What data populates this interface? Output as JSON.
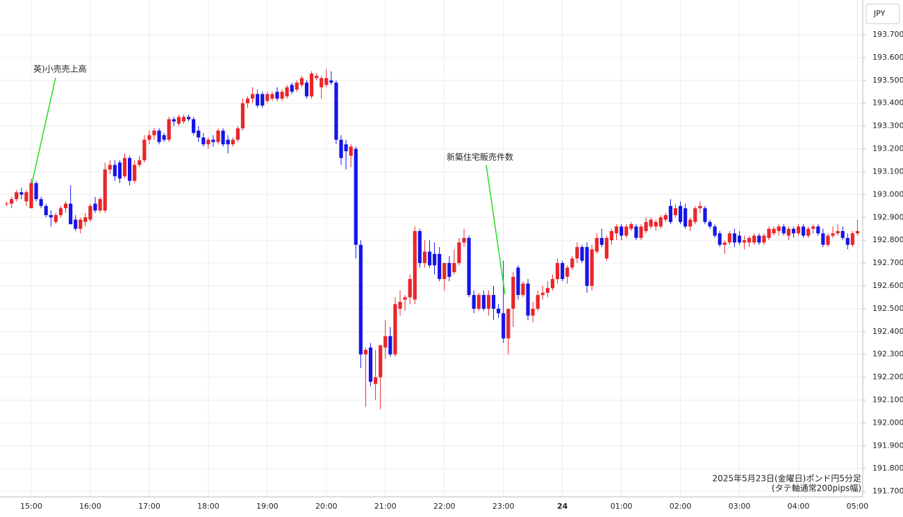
{
  "chart_data": {
    "type": "candlestick",
    "y_axis_label": "JPY",
    "footnote": [
      "2025年5月23日(金曜日)ポンド円5分足",
      "(タテ軸通常200pips幅)"
    ],
    "annotations": [
      "英)小売売上高",
      "新築住宅販売件数"
    ],
    "up_color": "#e8262a",
    "down_color": "#1515e8",
    "grid": true,
    "ylim": [
      191.676,
      193.852
    ],
    "yticks": [
      {
        "value": 191.7,
        "label": "191.700"
      },
      {
        "value": 191.8,
        "label": "191.800"
      },
      {
        "value": 191.9,
        "label": "191.900"
      },
      {
        "value": 192.0,
        "label": "192.000"
      },
      {
        "value": 192.1,
        "label": "192.100"
      },
      {
        "value": 192.2,
        "label": "192.200"
      },
      {
        "value": 192.3,
        "label": "192.300"
      },
      {
        "value": 192.4,
        "label": "192.400"
      },
      {
        "value": 192.5,
        "label": "192.500"
      },
      {
        "value": 192.6,
        "label": "192.600"
      },
      {
        "value": 192.7,
        "label": "192.700"
      },
      {
        "value": 192.8,
        "label": "192.800"
      },
      {
        "value": 192.9,
        "label": "192.900"
      },
      {
        "value": 193.0,
        "label": "193.000"
      },
      {
        "value": 193.1,
        "label": "193.100"
      },
      {
        "value": 193.2,
        "label": "193.200"
      },
      {
        "value": 193.3,
        "label": "193.300"
      },
      {
        "value": 193.4,
        "label": "193.400"
      },
      {
        "value": 193.5,
        "label": "193.500"
      },
      {
        "value": 193.6,
        "label": "193.600"
      },
      {
        "value": 193.7,
        "label": "193.700"
      }
    ],
    "categories": [
      null,
      null,
      null,
      null,
      null,
      "15:00",
      null,
      null,
      null,
      null,
      null,
      null,
      null,
      null,
      null,
      null,
      null,
      "16:00",
      null,
      null,
      null,
      null,
      null,
      null,
      null,
      null,
      null,
      null,
      null,
      "17:00",
      null,
      null,
      null,
      null,
      null,
      null,
      null,
      null,
      null,
      null,
      null,
      "18:00",
      null,
      null,
      null,
      null,
      null,
      null,
      null,
      null,
      null,
      null,
      null,
      "19:00",
      null,
      null,
      null,
      null,
      null,
      null,
      null,
      null,
      null,
      null,
      null,
      "20:00",
      null,
      null,
      null,
      null,
      null,
      null,
      null,
      null,
      null,
      null,
      null,
      "21:00",
      null,
      null,
      null,
      null,
      null,
      null,
      null,
      null,
      null,
      null,
      null,
      "22:00",
      null,
      null,
      null,
      null,
      null,
      null,
      null,
      null,
      null,
      null,
      null,
      "23:00",
      null,
      null,
      null,
      null,
      null,
      null,
      null,
      null,
      null,
      null,
      null,
      "24",
      null,
      null,
      null,
      null,
      null,
      null,
      null,
      null,
      null,
      null,
      null,
      "01:00",
      null,
      null,
      null,
      null,
      null,
      null,
      null,
      null,
      null,
      null,
      null,
      "02:00",
      null,
      null,
      null,
      null,
      null,
      null,
      null,
      null,
      null,
      null,
      null,
      "03:00",
      null,
      null,
      null,
      null,
      null,
      null,
      null,
      null,
      null,
      null,
      null,
      "04:00",
      null,
      null,
      null,
      null,
      null,
      null,
      null,
      null,
      null,
      null,
      null,
      "05:00"
    ],
    "open": [
      192.96,
      192.96,
      192.98,
      193.01,
      192.97,
      192.94,
      193.05,
      192.98,
      192.95,
      192.91,
      192.88,
      192.91,
      192.94,
      192.96,
      192.89,
      192.85,
      192.88,
      192.89,
      192.96,
      192.93,
      192.93,
      193.11,
      193.13,
      193.14,
      193.08,
      193.16,
      193.06,
      193.13,
      193.15,
      193.24,
      193.26,
      193.28,
      193.26,
      193.24,
      193.33,
      193.31,
      193.32,
      193.34,
      193.33,
      193.28,
      193.25,
      193.22,
      193.24,
      193.23,
      193.28,
      193.24,
      193.22,
      193.24,
      193.29,
      193.4,
      193.42,
      193.44,
      193.44,
      193.41,
      193.42,
      193.45,
      193.42,
      193.43,
      193.48,
      193.46,
      193.48,
      193.49,
      193.43,
      193.51,
      193.47,
      193.48,
      193.5,
      193.49,
      193.24,
      193.22,
      193.17,
      193.2,
      192.78,
      192.3,
      192.33,
      192.17,
      192.2,
      192.33,
      192.38,
      192.3,
      192.5,
      192.54,
      192.55,
      192.54,
      192.84,
      192.7,
      192.75,
      192.74,
      192.74,
      192.63,
      192.7,
      192.66,
      192.7,
      192.79,
      192.81,
      192.56,
      192.5,
      192.56,
      192.5,
      192.56,
      192.5,
      192.48,
      192.37,
      192.5,
      192.68,
      192.56,
      192.61,
      192.47,
      192.5,
      192.56,
      192.57,
      192.59,
      192.63,
      192.7,
      192.64,
      192.68,
      192.72,
      192.77,
      192.77,
      192.6,
      192.75,
      192.81,
      192.72,
      192.8,
      192.83,
      192.86,
      192.82,
      192.85,
      192.86,
      192.81,
      192.84,
      192.86,
      192.86,
      192.86,
      192.89,
      192.95,
      192.91,
      192.95,
      192.94,
      192.86,
      192.88,
      192.94,
      192.94,
      192.88,
      192.86,
      192.83,
      192.78,
      192.79,
      192.83,
      192.82,
      192.79,
      192.79,
      192.79,
      192.82,
      192.79,
      192.81,
      192.83,
      192.84,
      192.86,
      192.82,
      192.85,
      192.83,
      192.86,
      192.82,
      192.85,
      192.86,
      192.83,
      192.78,
      192.82,
      192.83,
      192.84,
      192.81,
      192.78,
      192.83
    ],
    "high": [
      192.97,
      192.99,
      193.02,
      193.03,
      193.02,
      193.07,
      193.06,
      192.99,
      192.96,
      192.93,
      192.92,
      192.95,
      192.97,
      193.04,
      192.91,
      192.9,
      192.92,
      192.96,
      192.99,
      192.99,
      193.14,
      193.15,
      193.15,
      193.15,
      193.18,
      193.17,
      193.15,
      193.17,
      193.26,
      193.28,
      193.29,
      193.29,
      193.27,
      193.34,
      193.34,
      193.35,
      193.35,
      193.35,
      193.34,
      193.3,
      193.27,
      193.25,
      193.26,
      193.29,
      193.29,
      193.26,
      193.25,
      193.3,
      193.42,
      193.43,
      193.47,
      193.46,
      193.45,
      193.45,
      193.45,
      193.47,
      193.46,
      193.48,
      193.49,
      193.5,
      193.52,
      193.5,
      193.54,
      193.53,
      193.52,
      193.55,
      193.54,
      193.5,
      193.26,
      193.24,
      193.22,
      193.21,
      192.8,
      192.33,
      192.35,
      192.32,
      192.33,
      192.45,
      192.42,
      192.55,
      192.58,
      192.56,
      192.65,
      192.86,
      192.85,
      192.8,
      192.8,
      192.79,
      192.77,
      192.7,
      192.73,
      192.76,
      192.81,
      192.85,
      192.82,
      192.58,
      192.57,
      192.58,
      192.58,
      192.6,
      192.52,
      192.71,
      192.48,
      192.66,
      192.69,
      192.62,
      192.63,
      192.53,
      192.58,
      192.6,
      192.62,
      192.65,
      192.72,
      192.71,
      192.69,
      192.73,
      192.79,
      192.78,
      192.79,
      192.78,
      192.83,
      192.85,
      192.82,
      192.85,
      192.87,
      192.87,
      192.87,
      192.88,
      192.87,
      192.87,
      192.9,
      192.9,
      192.89,
      192.91,
      192.92,
      192.98,
      192.96,
      192.97,
      192.96,
      192.9,
      192.95,
      192.97,
      192.95,
      192.89,
      192.87,
      192.84,
      192.8,
      192.84,
      192.85,
      192.84,
      192.82,
      192.82,
      192.83,
      192.83,
      192.83,
      192.86,
      192.86,
      192.87,
      192.87,
      192.86,
      192.86,
      192.87,
      192.87,
      192.86,
      192.87,
      192.87,
      192.85,
      192.83,
      192.86,
      192.87,
      192.86,
      192.83,
      192.84,
      192.89
    ],
    "low": [
      192.95,
      192.94,
      192.97,
      192.98,
      192.95,
      192.94,
      192.97,
      192.94,
      192.9,
      192.86,
      192.87,
      192.9,
      192.92,
      192.87,
      192.84,
      192.83,
      192.86,
      192.88,
      192.92,
      192.92,
      192.92,
      193.09,
      193.06,
      193.05,
      193.07,
      193.04,
      193.05,
      193.12,
      193.14,
      193.22,
      193.24,
      193.22,
      193.23,
      193.23,
      193.3,
      193.3,
      193.31,
      193.32,
      193.26,
      193.23,
      193.21,
      193.2,
      193.21,
      193.22,
      193.21,
      193.18,
      193.21,
      193.23,
      193.28,
      193.38,
      193.4,
      193.38,
      193.38,
      193.4,
      193.41,
      193.41,
      193.41,
      193.42,
      193.44,
      193.45,
      193.47,
      193.42,
      193.42,
      193.5,
      193.42,
      193.47,
      193.48,
      193.22,
      193.13,
      193.11,
      193.12,
      192.72,
      192.24,
      192.07,
      192.16,
      192.1,
      192.06,
      192.28,
      192.29,
      192.29,
      192.47,
      192.49,
      192.52,
      192.52,
      192.68,
      192.68,
      192.68,
      192.65,
      192.62,
      192.58,
      192.62,
      192.65,
      192.69,
      192.77,
      192.55,
      192.48,
      192.49,
      192.49,
      192.47,
      192.45,
      192.46,
      192.35,
      192.3,
      192.42,
      192.54,
      192.55,
      192.45,
      192.44,
      192.49,
      192.54,
      192.55,
      192.58,
      192.61,
      192.62,
      192.61,
      192.67,
      192.7,
      192.7,
      192.57,
      192.58,
      192.74,
      192.77,
      192.71,
      192.78,
      192.8,
      192.8,
      192.81,
      192.84,
      192.8,
      192.8,
      192.83,
      192.85,
      192.84,
      192.85,
      192.88,
      192.87,
      192.9,
      192.87,
      192.85,
      192.84,
      192.87,
      192.92,
      192.87,
      192.85,
      192.81,
      192.77,
      192.74,
      192.78,
      192.77,
      192.78,
      192.76,
      192.77,
      192.78,
      192.78,
      192.78,
      192.8,
      192.82,
      192.82,
      192.82,
      192.8,
      192.81,
      192.82,
      192.81,
      192.81,
      192.83,
      192.82,
      192.77,
      192.77,
      192.81,
      192.82,
      192.8,
      192.76,
      192.77,
      192.82
    ],
    "close": [
      192.96,
      192.98,
      193.01,
      193.0,
      193.01,
      193.05,
      192.98,
      192.95,
      192.91,
      192.9,
      192.91,
      192.94,
      192.96,
      192.87,
      192.85,
      192.89,
      192.9,
      192.95,
      192.93,
      192.98,
      193.11,
      193.13,
      193.08,
      193.07,
      193.16,
      193.06,
      193.13,
      193.15,
      193.24,
      193.26,
      193.28,
      193.23,
      193.24,
      193.33,
      193.32,
      193.34,
      193.34,
      193.33,
      193.27,
      193.25,
      193.22,
      193.24,
      193.23,
      193.28,
      193.22,
      193.22,
      193.24,
      193.29,
      193.4,
      193.42,
      193.44,
      193.39,
      193.39,
      193.44,
      193.44,
      193.42,
      193.45,
      193.47,
      193.45,
      193.49,
      193.51,
      193.43,
      193.53,
      193.52,
      193.51,
      193.51,
      193.49,
      193.24,
      193.16,
      193.19,
      193.21,
      192.78,
      192.3,
      192.32,
      192.18,
      192.2,
      192.34,
      192.38,
      192.3,
      192.52,
      192.53,
      192.55,
      192.63,
      192.84,
      192.7,
      192.75,
      192.69,
      192.69,
      192.63,
      192.7,
      192.64,
      192.7,
      192.79,
      192.81,
      192.56,
      192.5,
      192.56,
      192.5,
      192.56,
      192.5,
      192.48,
      192.37,
      192.5,
      192.64,
      192.56,
      192.61,
      192.47,
      192.5,
      192.56,
      192.57,
      192.59,
      192.63,
      192.7,
      192.63,
      192.68,
      192.72,
      192.77,
      192.71,
      192.6,
      192.76,
      192.81,
      192.78,
      192.81,
      192.84,
      192.86,
      192.82,
      192.86,
      192.87,
      192.81,
      192.86,
      192.88,
      192.89,
      192.88,
      192.9,
      192.91,
      192.88,
      192.94,
      192.88,
      192.86,
      192.89,
      192.94,
      192.95,
      192.88,
      192.86,
      192.82,
      192.78,
      192.79,
      192.83,
      192.79,
      192.79,
      192.8,
      192.81,
      192.82,
      192.79,
      192.82,
      192.85,
      192.85,
      192.86,
      192.83,
      192.85,
      192.83,
      192.86,
      192.82,
      192.85,
      192.86,
      192.83,
      192.78,
      192.82,
      192.83,
      192.84,
      192.81,
      192.78,
      192.83,
      192.84
    ]
  }
}
